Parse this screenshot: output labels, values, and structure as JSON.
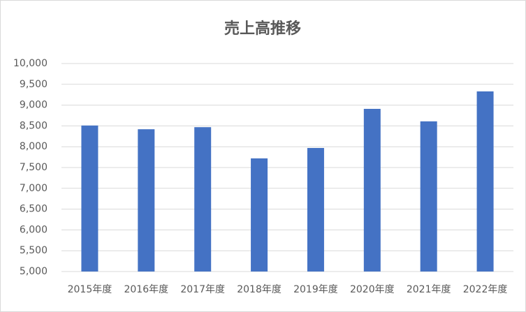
{
  "chart_data": {
    "type": "bar",
    "title": "売上高推移",
    "categories": [
      "2015年度",
      "2016年度",
      "2017年度",
      "2018年度",
      "2019年度",
      "2020年度",
      "2021年度",
      "2022年度"
    ],
    "values": [
      8510,
      8420,
      8470,
      7720,
      7970,
      8910,
      8610,
      9330
    ],
    "color": "#4472c4",
    "ylim": [
      5000,
      10000
    ],
    "yticks": [
      {
        "value": 5000,
        "label": "5,000"
      },
      {
        "value": 5500,
        "label": "5,500"
      },
      {
        "value": 6000,
        "label": "6,000"
      },
      {
        "value": 6500,
        "label": "6,500"
      },
      {
        "value": 7000,
        "label": "7,000"
      },
      {
        "value": 7500,
        "label": "7,500"
      },
      {
        "value": 8000,
        "label": "8,000"
      },
      {
        "value": 8500,
        "label": "8,500"
      },
      {
        "value": 9000,
        "label": "9,000"
      },
      {
        "value": 9500,
        "label": "9,500"
      },
      {
        "value": 10000,
        "label": "10,000"
      }
    ],
    "grid": true
  }
}
